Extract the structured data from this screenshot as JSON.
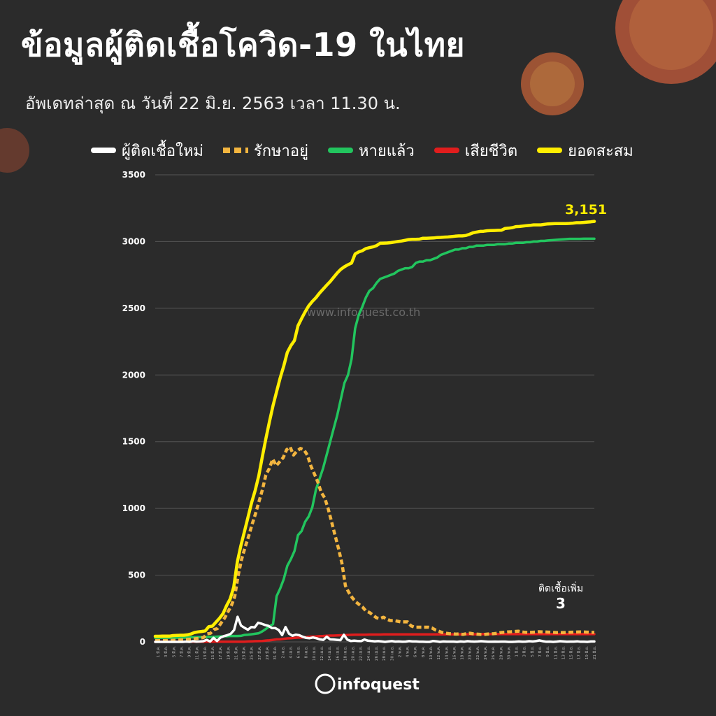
{
  "title": "ข้อมูลผู้ติดเชื้อโควิด-19 ในไทย",
  "updated": "อัพเดทล่าสุด ณ วันที่   22 มิ.ย. 2563 เวลา 11.30 น.",
  "watermark": "www.infoquest.co.th",
  "brand": "infoquest",
  "annotation": {
    "new_cases_label": "ติดเชื้อเพิ่ม",
    "new_cases_value": "3",
    "total_label": "3,151"
  },
  "colors": {
    "background": "#2b2b2b",
    "new_cases": "#ffffff",
    "active": "#f3b53f",
    "recovered": "#22c55e",
    "deaths": "#e11d1d",
    "cumulative": "#ffee00",
    "total_label": "#ffee00",
    "grid": "#555555"
  },
  "chart_data": {
    "type": "line",
    "title": "",
    "xlabel": "",
    "ylabel": "",
    "ylim": [
      0,
      3500
    ],
    "yticks": [
      "0",
      "500",
      "1000",
      "1500",
      "2000",
      "2500",
      "3000",
      "3500"
    ],
    "grid": true,
    "legend": "top",
    "xtick_labels": [
      "1 มี.ค.",
      "3 มี.ค.",
      "5 มี.ค.",
      "7 มี.ค.",
      "9 มี.ค.",
      "11 มี.ค.",
      "13 มี.ค.",
      "15 มี.ค.",
      "17 มี.ค.",
      "19 มี.ค.",
      "21 มี.ค.",
      "23 มี.ค.",
      "25 มี.ค.",
      "27 มี.ค.",
      "29 มี.ค.",
      "31 มี.ค.",
      "2 เม.ย.",
      "4 เม.ย.",
      "6 เม.ย.",
      "8 เม.ย.",
      "10 เม.ย.",
      "12 เม.ย.",
      "14 เม.ย.",
      "16 เม.ย.",
      "18 เม.ย.",
      "20 เม.ย.",
      "22 เม.ย.",
      "24 เม.ย.",
      "26 เม.ย.",
      "28 เม.ย.",
      "30 เม.ย.",
      "2 พ.ค.",
      "4 พ.ค.",
      "6 พ.ค.",
      "8 พ.ค.",
      "10 พ.ค.",
      "12 พ.ค.",
      "14 พ.ค.",
      "16 พ.ค.",
      "18 พ.ค.",
      "20 พ.ค.",
      "22 พ.ค.",
      "24 พ.ค.",
      "26 พ.ค.",
      "28 พ.ค.",
      "30 พ.ค.",
      "1 มิ.ย.",
      "3 มิ.ย.",
      "5 มิ.ย.",
      "7 มิ.ย.",
      "9 มิ.ย.",
      "11 มิ.ย.",
      "13 มิ.ย.",
      "15 มิ.ย.",
      "17 มิ.ย.",
      "19 มิ.ย.",
      "21 มิ.ย."
    ],
    "x_start": "1 มี.ค.",
    "series": [
      {
        "name": "ผู้ติดเชื้อใหม่",
        "key": "new_cases",
        "style": "solid",
        "values": [
          0,
          0,
          0,
          0,
          0,
          0,
          0,
          0,
          0,
          2,
          0,
          5,
          2,
          3,
          5,
          15,
          3,
          30,
          7,
          32,
          43,
          50,
          60,
          89,
          188,
          122,
          106,
          91,
          111,
          109,
          143,
          136,
          127,
          120,
          104,
          103,
          89,
          51,
          111,
          62,
          46,
          54,
          50,
          38,
          30,
          28,
          33,
          27,
          19,
          15,
          38,
          19,
          18,
          15,
          13,
          53,
          16,
          7,
          9,
          7,
          6,
          18,
          9,
          7,
          4,
          6,
          3,
          0,
          3,
          6,
          2,
          3,
          1,
          2,
          6,
          3,
          3,
          1,
          1,
          0,
          0,
          7,
          4,
          0,
          3,
          2,
          2,
          2,
          0,
          3,
          1,
          5,
          3,
          2,
          3,
          5,
          3,
          1,
          1,
          2,
          1,
          2,
          2,
          0,
          0,
          1,
          3,
          1,
          2,
          5,
          3,
          6,
          11,
          5,
          1,
          2,
          0,
          2,
          5,
          3,
          1,
          2,
          2,
          4,
          1,
          1,
          0,
          3,
          3
        ]
      },
      {
        "name": "รักษาอยู่",
        "key": "active",
        "style": "dashed",
        "values": [
          9,
          9,
          10,
          10,
          11,
          12,
          13,
          14,
          16,
          18,
          20,
          22,
          25,
          28,
          33,
          60,
          65,
          93,
          100,
          140,
          176,
          223,
          270,
          340,
          500,
          620,
          710,
          790,
          880,
          960,
          1050,
          1140,
          1250,
          1300,
          1370,
          1320,
          1350,
          1380,
          1440,
          1460,
          1400,
          1430,
          1450,
          1440,
          1400,
          1320,
          1260,
          1200,
          1120,
          1080,
          1000,
          900,
          800,
          700,
          590,
          420,
          370,
          330,
          300,
          280,
          260,
          230,
          220,
          200,
          180,
          175,
          185,
          170,
          160,
          160,
          155,
          150,
          150,
          150,
          120,
          110,
          110,
          110,
          110,
          110,
          105,
          90,
          80,
          70,
          65,
          62,
          60,
          58,
          60,
          56,
          62,
          65,
          60,
          58,
          56,
          55,
          58,
          60,
          62,
          65,
          70,
          72,
          75,
          76,
          78,
          80,
          75,
          72,
          70,
          72,
          74,
          76,
          75,
          74,
          73,
          72,
          70,
          69,
          70,
          71,
          72,
          73,
          74,
          75,
          74,
          73,
          72,
          71
        ]
      },
      {
        "name": "หายแล้ว",
        "key": "recovered",
        "style": "solid",
        "values": [
          31,
          31,
          31,
          31,
          31,
          31,
          31,
          31,
          31,
          33,
          34,
          35,
          36,
          36,
          36,
          37,
          37,
          39,
          41,
          42,
          42,
          44,
          44,
          44,
          45,
          52,
          54,
          57,
          61,
          65,
          79,
          97,
          117,
          133,
          342,
          400,
          470,
          570,
          620,
          680,
          800,
          830,
          900,
          940,
          1010,
          1140,
          1220,
          1300,
          1400,
          1500,
          1600,
          1700,
          1820,
          1940,
          2000,
          2120,
          2350,
          2450,
          2510,
          2580,
          2630,
          2650,
          2690,
          2720,
          2730,
          2740,
          2750,
          2760,
          2780,
          2790,
          2800,
          2800,
          2810,
          2840,
          2850,
          2850,
          2860,
          2860,
          2870,
          2880,
          2900,
          2910,
          2920,
          2930,
          2940,
          2940,
          2950,
          2950,
          2960,
          2960,
          2970,
          2970,
          2970,
          2975,
          2975,
          2975,
          2980,
          2980,
          2980,
          2985,
          2985,
          2990,
          2990,
          2990,
          2995,
          2995,
          3000,
          3000,
          3005,
          3005,
          3008,
          3010,
          3012,
          3014,
          3016,
          3018,
          3020,
          3020,
          3020,
          3020,
          3021,
          3021,
          3021,
          3021
        ]
      },
      {
        "name": "เสียชีวิต",
        "key": "deaths",
        "style": "solid",
        "values": [
          1,
          1,
          1,
          1,
          1,
          1,
          1,
          1,
          1,
          1,
          1,
          1,
          1,
          1,
          1,
          1,
          1,
          1,
          1,
          1,
          1,
          1,
          1,
          1,
          1,
          1,
          3,
          4,
          5,
          6,
          7,
          10,
          12,
          15,
          19,
          20,
          23,
          26,
          27,
          30,
          32,
          33,
          35,
          38,
          40,
          41,
          43,
          44,
          46,
          47,
          47,
          48,
          50,
          51,
          52,
          53,
          54,
          54,
          54,
          54,
          55,
          55,
          55,
          55,
          56,
          56,
          56,
          56,
          56,
          56,
          56,
          56,
          56,
          56,
          56,
          56,
          56,
          56,
          56,
          56,
          56,
          56,
          56,
          56,
          56,
          56,
          57,
          57,
          57,
          57,
          57,
          57,
          58,
          58,
          58,
          58,
          58,
          58,
          58,
          58,
          58,
          58,
          58,
          58,
          58,
          58,
          58,
          58,
          58,
          58,
          58,
          58,
          58,
          58,
          58,
          58,
          58,
          58,
          58,
          58,
          58,
          58,
          58,
          58
        ]
      },
      {
        "name": "ยอดสะสม",
        "key": "cumulative",
        "style": "solid",
        "values": [
          42,
          42,
          43,
          43,
          43,
          47,
          48,
          50,
          50,
          53,
          59,
          70,
          75,
          78,
          82,
          114,
          118,
          147,
          177,
          212,
          272,
          322,
          411,
          599,
          721,
          827,
          934,
          1045,
          1136,
          1245,
          1388,
          1524,
          1651,
          1771,
          1875,
          1978,
          2067,
          2169,
          2220,
          2258,
          2369,
          2423,
          2473,
          2518,
          2551,
          2579,
          2613,
          2643,
          2672,
          2700,
          2733,
          2765,
          2792,
          2811,
          2826,
          2839,
          2907,
          2922,
          2931,
          2947,
          2954,
          2960,
          2969,
          2987,
          2988,
          2989,
          2992,
          2996,
          3000,
          3004,
          3009,
          3015,
          3017,
          3017,
          3018,
          3025,
          3025,
          3026,
          3027,
          3030,
          3031,
          3033,
          3034,
          3037,
          3040,
          3042,
          3042,
          3045,
          3054,
          3065,
          3071,
          3076,
          3077,
          3081,
          3082,
          3083,
          3084,
          3085,
          3098,
          3100,
          3104,
          3112,
          3113,
          3116,
          3119,
          3121,
          3125,
          3125,
          3125,
          3129,
          3132,
          3133,
          3135,
          3135,
          3135,
          3135,
          3136,
          3138,
          3141,
          3141,
          3143,
          3146,
          3148,
          3151
        ]
      }
    ]
  }
}
